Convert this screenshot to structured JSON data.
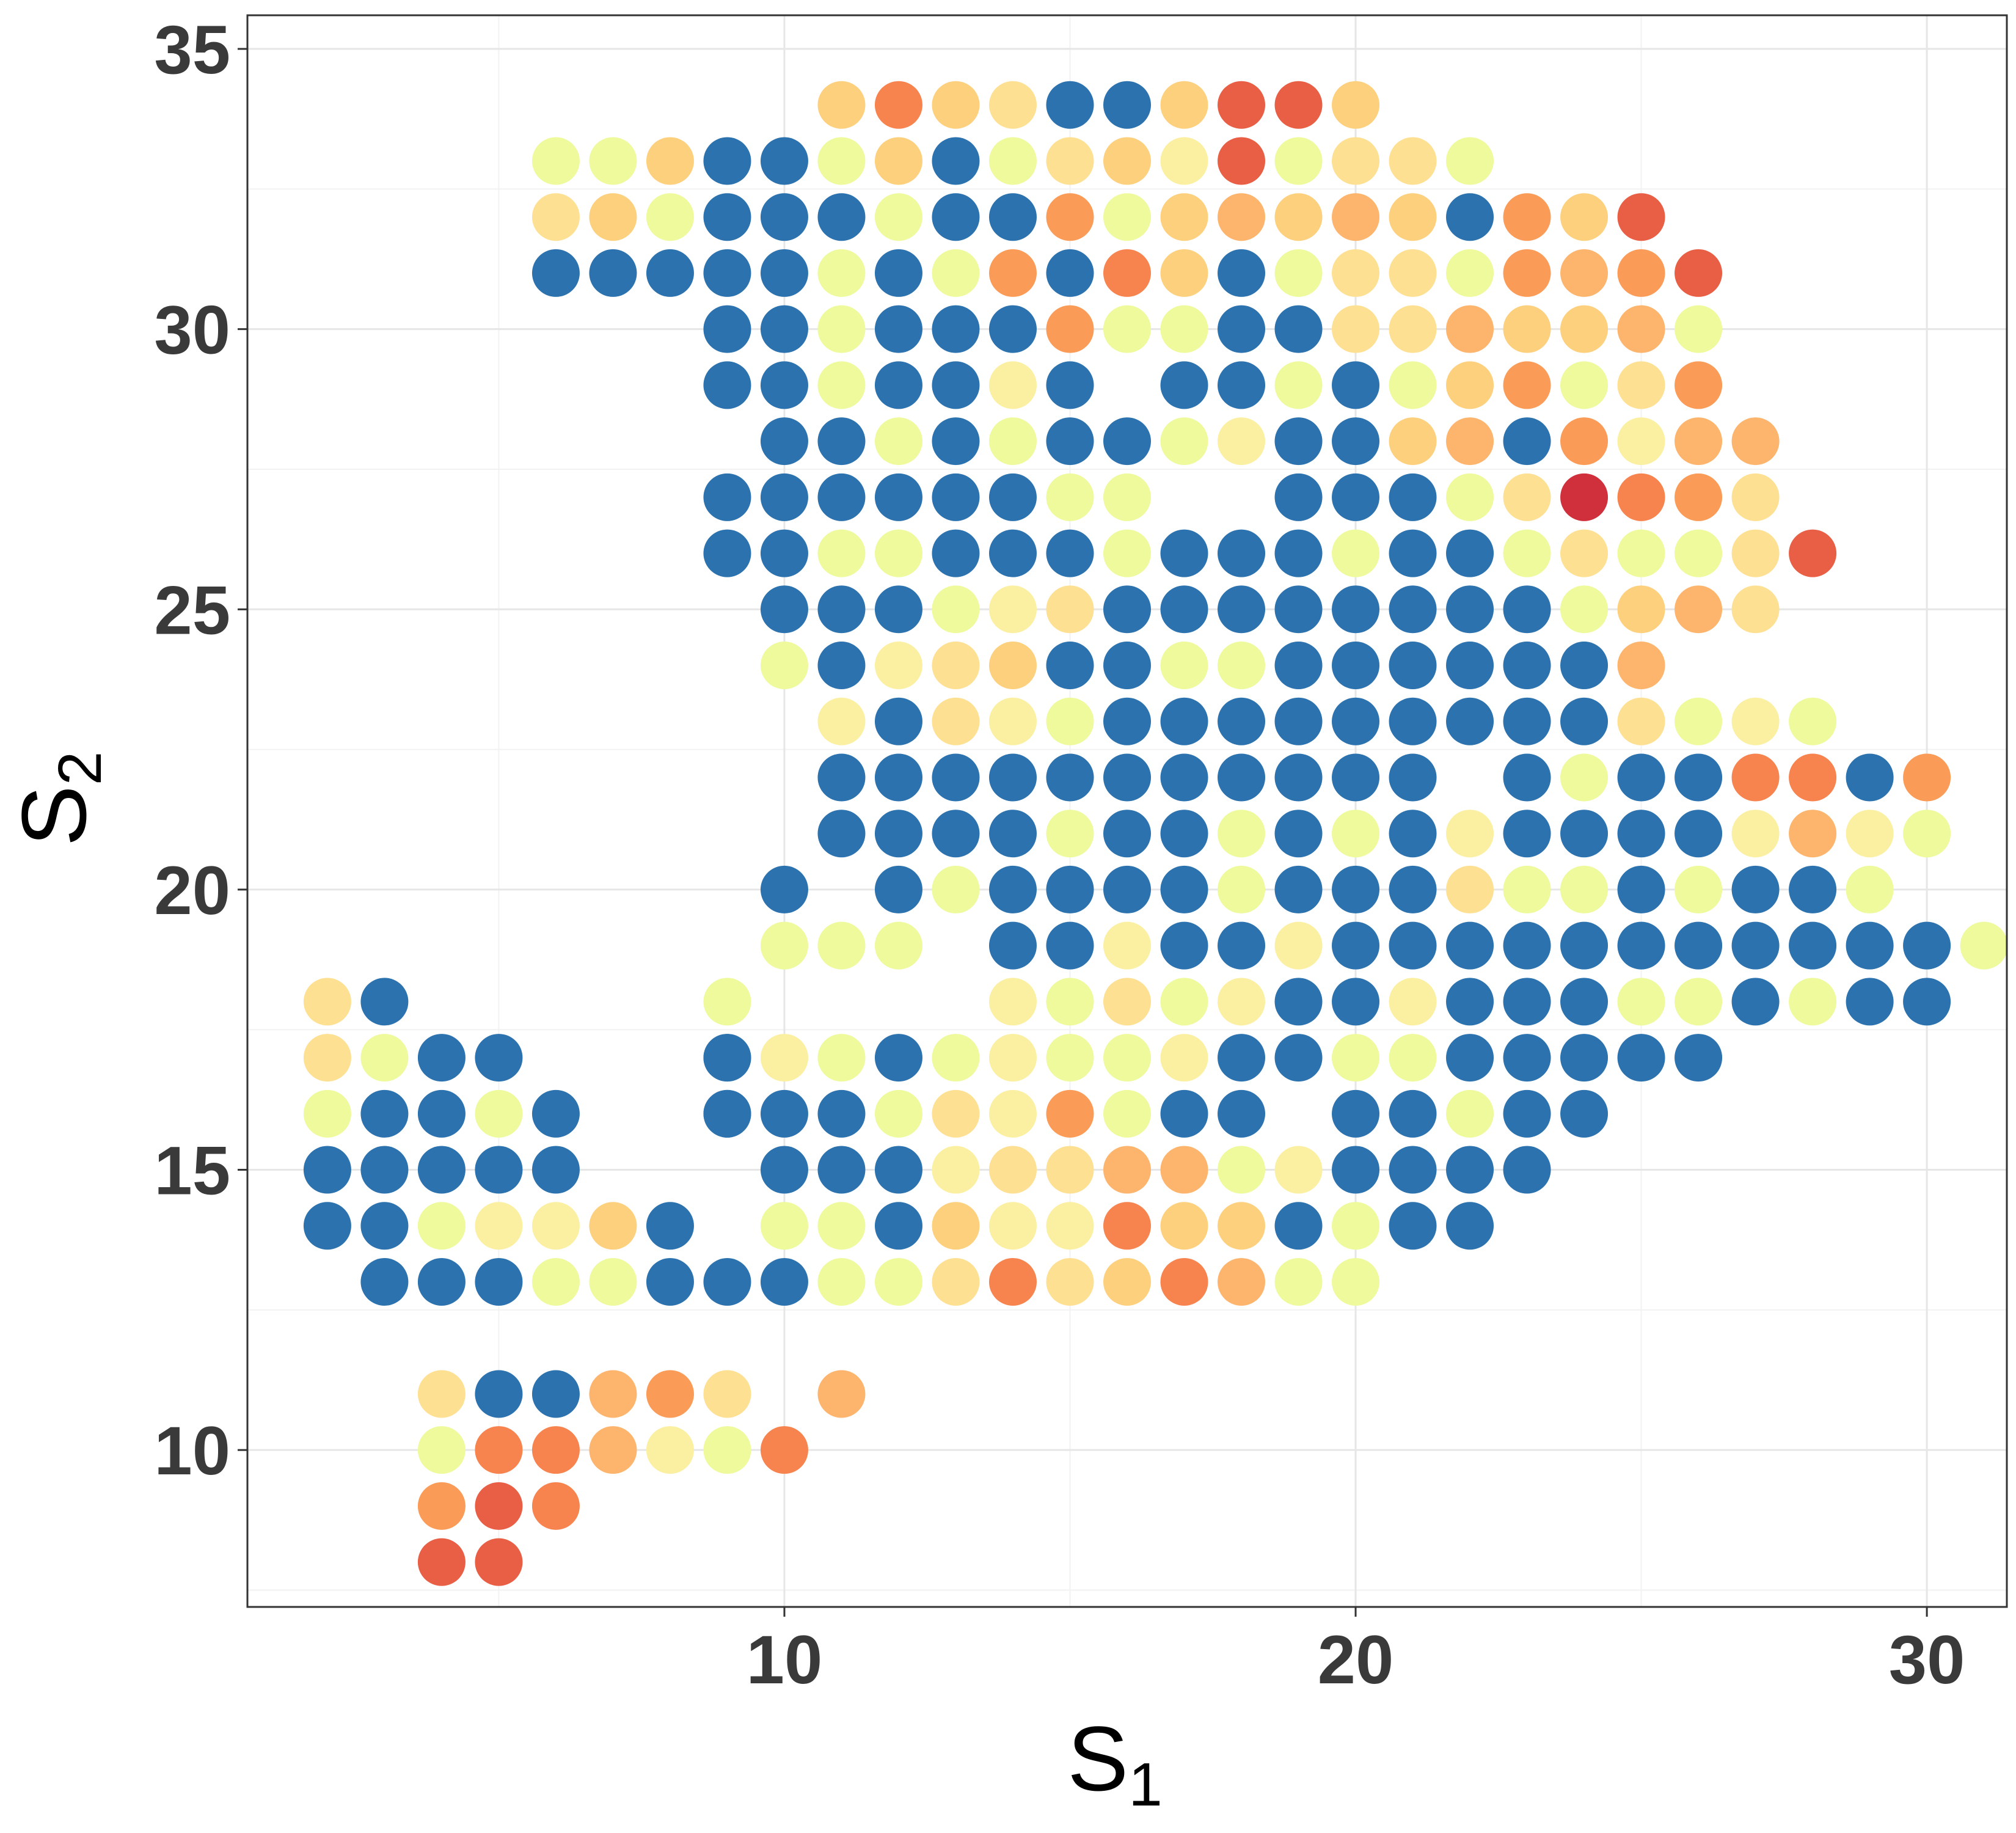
{
  "chart_data": {
    "type": "scatter",
    "xlabel": {
      "main": "S",
      "sub": "1"
    },
    "ylabel": {
      "main": "S",
      "sub": "2"
    },
    "xlim": [
      0.6,
      31.4
    ],
    "ylim": [
      7.2,
      35.6
    ],
    "x_ticks": [
      10,
      20,
      30
    ],
    "y_ticks": [
      10,
      15,
      20,
      25,
      30,
      35
    ],
    "grid": true,
    "colors": {
      "B": "#2b72ae",
      "Y": "#eefa9c",
      "L": "#fbf0a2",
      "M": "#fee092",
      "G": "#fdd07e",
      "O": "#fdb56e",
      "P": "#fb9b58",
      "R": "#f7834e",
      "E": "#e85f45",
      "D": "#d02f3c"
    },
    "rows": [
      {
        "y": 34,
        "x0": 11,
        "cells": "GRGMBBGEEG"
      },
      {
        "y": 33,
        "x0": 6,
        "cells": "YYGBBYGBYMGLEYMMY"
      },
      {
        "y": 32,
        "x0": 6,
        "cells": "MGYBBBYBBPYGOGOGBPGE"
      },
      {
        "y": 31,
        "x0": 6,
        "cells": "BBBBBYBYPBRGBYMMYPOPE"
      },
      {
        "y": 30,
        "x0": 9,
        "cells": "BBYBBBPYYBBMMOGGOY"
      },
      {
        "y": 29,
        "x0": 9,
        "cells": "BBYBBLB.BBYBYGPYMP"
      },
      {
        "y": 28,
        "x0": 10,
        "cells": "BBYBYBBYLBBGOBPLOO"
      },
      {
        "y": 27,
        "x0": 9,
        "cells": "BBBBBBYY..BBBYMDRPM"
      },
      {
        "y": 26,
        "x0": 9,
        "cells": "BBYYBBBYBBBYBBYMYYME"
      },
      {
        "y": 25,
        "x0": 10,
        "cells": "BBBYLMBBBBBBBBYGOM"
      },
      {
        "y": 24,
        "x0": 10,
        "cells": "YBLMGBBYYBBBBBBO"
      },
      {
        "y": 23,
        "x0": 11,
        "cells": "LBMLYBBBBBBBBBMYLY"
      },
      {
        "y": 22,
        "x0": 11,
        "cells": "BBBBBBBBBBB.BYBBRRBP"
      },
      {
        "y": 21,
        "x0": 11,
        "cells": "BBBBYBBYBYBLBBBBLOLY"
      },
      {
        "y": 20,
        "x0": 10,
        "cells": "B.BYBBBBYBBBMYYBYBBY"
      },
      {
        "y": 19,
        "x0": 10,
        "cells": "YYY.BBLBBLBBBBBBBBBBBY"
      },
      {
        "y": 18,
        "x0": 14,
        "cells": "LYMYLBBLBBBYYBYBB"
      },
      {
        "y": 17,
        "x0": 9,
        "cells": "BLYBYLYYLBBYYBBBBB"
      },
      {
        "y": 16,
        "x0": 9,
        "cells": "BBBYMLPYBB.BBYBB"
      },
      {
        "y": 15,
        "x0": 10,
        "cells": "BBBLMMOOYLBBBB"
      },
      {
        "y": 14,
        "x0": 10,
        "cells": "YYBGLLRGGBYBB"
      },
      {
        "y": 13,
        "x0": 10,
        "cells": "BYYMRMGROYY"
      },
      {
        "y": 18,
        "x0": 2,
        "cells": "MB.....Y"
      },
      {
        "y": 17,
        "x0": 2,
        "cells": "MYBB...B"
      },
      {
        "y": 16,
        "x0": 2,
        "cells": "YBBYB..B"
      },
      {
        "y": 15,
        "x0": 2,
        "cells": "BBBBB"
      },
      {
        "y": 14,
        "x0": 2,
        "cells": "BBYLLGB"
      },
      {
        "y": 13,
        "x0": 3,
        "cells": "BBBYYBB"
      },
      {
        "y": 11,
        "x0": 4,
        "cells": "MBBOPM.O"
      },
      {
        "y": 10,
        "x0": 4,
        "cells": "YRROLYR"
      },
      {
        "y": 9,
        "x0": 4,
        "cells": "PER"
      },
      {
        "y": 8,
        "x0": 4,
        "cells": "EE"
      }
    ]
  }
}
